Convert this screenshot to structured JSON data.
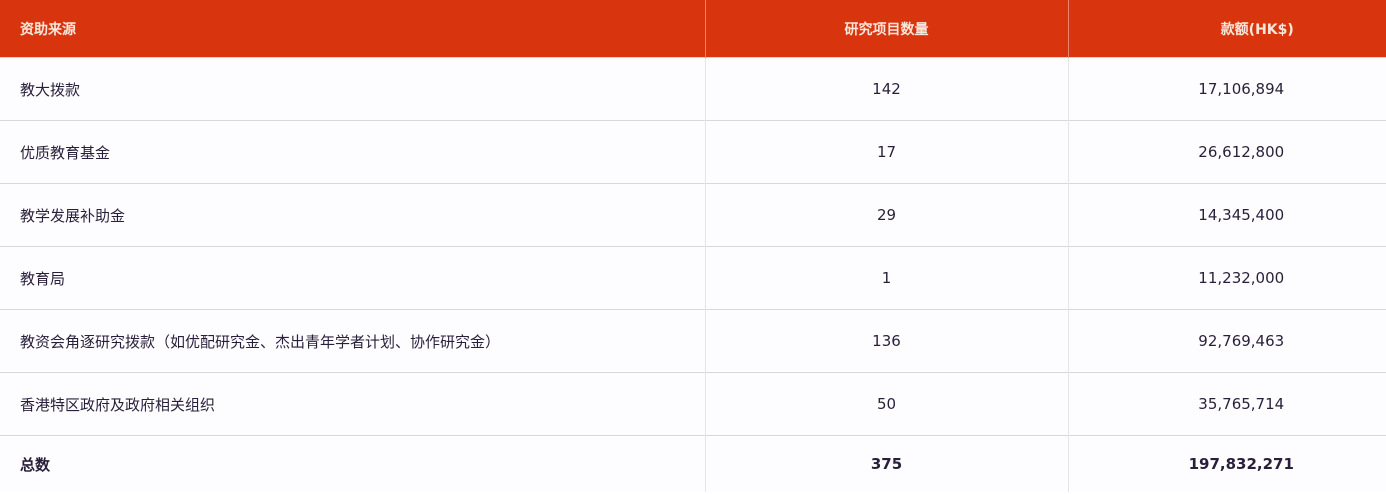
{
  "header": {
    "source": "资助来源",
    "count": "研究项目数量",
    "amount": "款额(HK$)"
  },
  "rows": [
    {
      "source": "教大拨款",
      "count": "142",
      "amount": "17,106,894"
    },
    {
      "source": "优质教育基金",
      "count": "17",
      "amount": "26,612,800"
    },
    {
      "source": "教学发展补助金",
      "count": "29",
      "amount": "14,345,400"
    },
    {
      "source": "教育局",
      "count": "1",
      "amount": "11,232,000"
    },
    {
      "source": "教资会角逐研究拨款（如优配研究金、杰出青年学者计划、协作研究金）",
      "count": "136",
      "amount": "92,769,463"
    },
    {
      "source": "香港特区政府及政府相关组织",
      "count": "50",
      "amount": "35,765,714"
    }
  ],
  "total": {
    "source": "总数",
    "count": "375",
    "amount": "197,832,271"
  },
  "colors": {
    "header_bg": "#d8350f"
  }
}
